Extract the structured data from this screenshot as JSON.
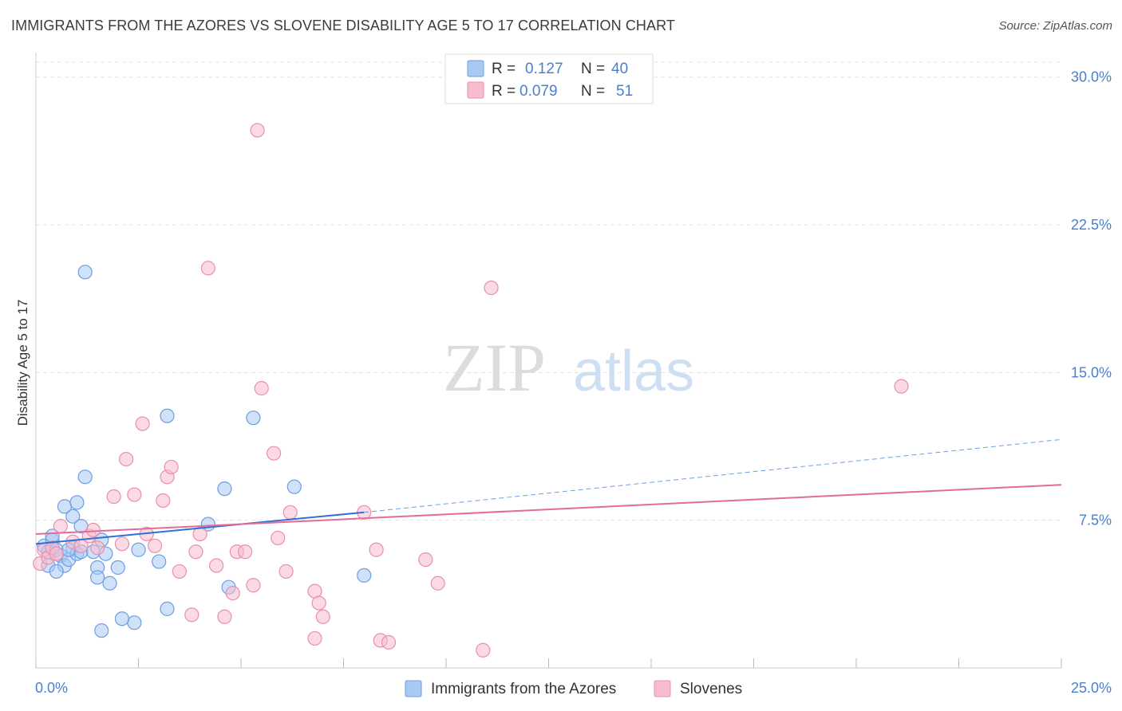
{
  "header": {
    "title": "IMMIGRANTS FROM THE AZORES VS SLOVENE DISABILITY AGE 5 TO 17 CORRELATION CHART",
    "source": "Source: ZipAtlas.com"
  },
  "watermark": {
    "zip": "ZIP",
    "atlas": "atlas"
  },
  "colors": {
    "blue_fill": "#a9c9f5",
    "blue_stroke": "#6f9de0",
    "blue_line": "#2f6fd6",
    "pink_fill": "#f7bccd",
    "pink_stroke": "#e890ab",
    "pink_line": "#e56b98",
    "tick_label": "#4a7fd0",
    "grid": "#e3e3e3"
  },
  "stats": {
    "blue": {
      "r_label": "R =",
      "r_value": "0.127",
      "n_label": "N =",
      "n_value": "40"
    },
    "pink": {
      "r_label": "R =",
      "r_value": "0.079",
      "n_label": "N =",
      "n_value": "51"
    }
  },
  "chart_data": {
    "type": "scatter",
    "title": "IMMIGRANTS FROM THE AZORES VS SLOVENE DISABILITY AGE 5 TO 17 CORRELATION CHART",
    "xlabel": "",
    "ylabel": "Disability Age 5 to 17",
    "xlim": [
      0,
      25
    ],
    "ylim": [
      0,
      31
    ],
    "x_tick_labels": {
      "min": "0.0%",
      "max": "25.0%"
    },
    "y_ticks": [
      {
        "value": 7.5,
        "label": "7.5%"
      },
      {
        "value": 15.0,
        "label": "15.0%"
      },
      {
        "value": 22.5,
        "label": "22.5%"
      },
      {
        "value": 30.0,
        "label": "30.0%"
      }
    ],
    "legend": [
      "Immigrants from the Azores",
      "Slovenes"
    ],
    "series": [
      {
        "name": "Immigrants from the Azores",
        "color": "blue",
        "trend": {
          "x0": 0.0,
          "y0": 6.3,
          "x1": 8.0,
          "y1": 7.9,
          "x_end": 25.0,
          "y_end": 11.6
        },
        "points": [
          [
            0.2,
            6.2
          ],
          [
            0.3,
            5.9
          ],
          [
            0.4,
            6.5
          ],
          [
            0.5,
            6.0
          ],
          [
            0.6,
            5.7
          ],
          [
            0.7,
            5.2
          ],
          [
            0.8,
            5.5
          ],
          [
            0.9,
            6.1
          ],
          [
            1.0,
            5.8
          ],
          [
            1.1,
            5.9
          ],
          [
            0.9,
            7.7
          ],
          [
            0.7,
            8.2
          ],
          [
            1.0,
            8.4
          ],
          [
            1.1,
            7.2
          ],
          [
            1.2,
            9.7
          ],
          [
            1.4,
            5.9
          ],
          [
            1.5,
            5.1
          ],
          [
            1.6,
            6.5
          ],
          [
            1.7,
            5.8
          ],
          [
            1.8,
            4.3
          ],
          [
            1.5,
            4.6
          ],
          [
            2.0,
            5.1
          ],
          [
            1.2,
            20.1
          ],
          [
            3.2,
            12.8
          ],
          [
            3.0,
            5.4
          ],
          [
            3.2,
            3.0
          ],
          [
            2.4,
            2.3
          ],
          [
            2.5,
            6.0
          ],
          [
            1.6,
            1.9
          ],
          [
            2.1,
            2.5
          ],
          [
            4.2,
            7.3
          ],
          [
            4.6,
            9.1
          ],
          [
            4.7,
            4.1
          ],
          [
            5.3,
            12.7
          ],
          [
            6.3,
            9.2
          ],
          [
            8.0,
            4.7
          ],
          [
            0.3,
            5.2
          ],
          [
            0.4,
            6.7
          ],
          [
            0.8,
            6.0
          ],
          [
            0.5,
            4.9
          ]
        ]
      },
      {
        "name": "Slovenes",
        "color": "pink",
        "trend": {
          "x0": 0.0,
          "y0": 6.8,
          "x1": 25.0,
          "y1": 9.3
        },
        "points": [
          [
            0.1,
            5.3
          ],
          [
            0.2,
            6.0
          ],
          [
            0.3,
            5.6
          ],
          [
            0.4,
            6.1
          ],
          [
            0.5,
            5.8
          ],
          [
            0.6,
            7.2
          ],
          [
            0.9,
            6.4
          ],
          [
            1.1,
            6.2
          ],
          [
            1.3,
            6.7
          ],
          [
            1.4,
            7.0
          ],
          [
            1.5,
            6.1
          ],
          [
            1.9,
            8.7
          ],
          [
            2.1,
            6.3
          ],
          [
            2.2,
            10.6
          ],
          [
            2.4,
            8.8
          ],
          [
            2.6,
            12.4
          ],
          [
            2.7,
            6.8
          ],
          [
            2.9,
            6.2
          ],
          [
            3.1,
            8.5
          ],
          [
            3.2,
            9.7
          ],
          [
            3.3,
            10.2
          ],
          [
            3.5,
            4.9
          ],
          [
            3.9,
            5.9
          ],
          [
            4.0,
            6.8
          ],
          [
            3.8,
            2.7
          ],
          [
            4.2,
            20.3
          ],
          [
            4.4,
            5.2
          ],
          [
            4.6,
            2.6
          ],
          [
            4.8,
            3.8
          ],
          [
            4.9,
            5.9
          ],
          [
            5.1,
            5.9
          ],
          [
            5.3,
            4.2
          ],
          [
            5.4,
            27.3
          ],
          [
            5.5,
            14.2
          ],
          [
            5.8,
            10.9
          ],
          [
            5.9,
            6.6
          ],
          [
            6.1,
            4.9
          ],
          [
            6.2,
            7.9
          ],
          [
            6.8,
            3.9
          ],
          [
            6.9,
            3.3
          ],
          [
            7.0,
            2.6
          ],
          [
            6.8,
            1.5
          ],
          [
            8.0,
            7.9
          ],
          [
            8.3,
            6.0
          ],
          [
            8.4,
            1.4
          ],
          [
            8.6,
            1.3
          ],
          [
            9.5,
            5.5
          ],
          [
            9.8,
            4.3
          ],
          [
            11.1,
            19.3
          ],
          [
            10.9,
            0.9
          ],
          [
            21.1,
            14.3
          ]
        ]
      }
    ]
  }
}
